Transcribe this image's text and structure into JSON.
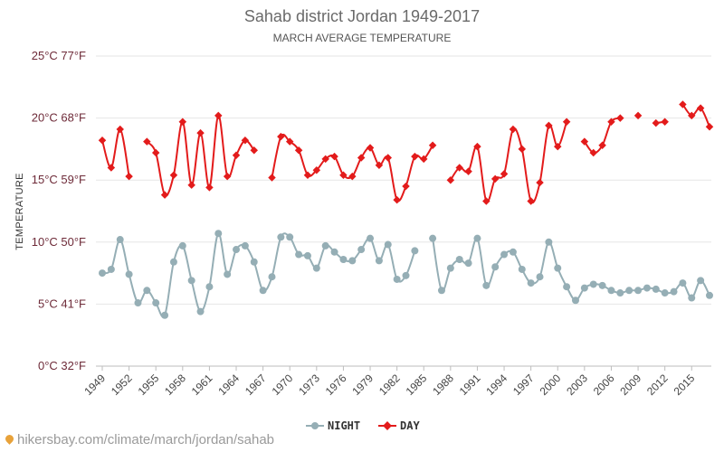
{
  "chart_data": {
    "type": "line",
    "title": "Sahab district Jordan 1949-2017",
    "subtitle": "MARCH AVERAGE TEMPERATURE",
    "ylabel": "TEMPERATURE",
    "ylim": [
      0,
      25
    ],
    "y_ticks": [
      {
        "value": 0,
        "label": "0°C 32°F"
      },
      {
        "value": 5,
        "label": "5°C 41°F"
      },
      {
        "value": 10,
        "label": "10°C 50°F"
      },
      {
        "value": 15,
        "label": "15°C 59°F"
      },
      {
        "value": 20,
        "label": "20°C 68°F"
      },
      {
        "value": 25,
        "label": "25°C 77°F"
      }
    ],
    "x_ticks": [
      "1949",
      "1952",
      "1955",
      "1958",
      "1961",
      "1964",
      "1967",
      "1970",
      "1973",
      "1976",
      "1979",
      "1982",
      "1985",
      "1988",
      "1991",
      "1994",
      "1997",
      "2000",
      "2003",
      "2006",
      "2009",
      "2012",
      "2015"
    ],
    "x": [
      1949,
      1950,
      1951,
      1952,
      1953,
      1954,
      1955,
      1956,
      1957,
      1958,
      1959,
      1960,
      1961,
      1962,
      1963,
      1964,
      1965,
      1966,
      1967,
      1968,
      1969,
      1970,
      1971,
      1972,
      1973,
      1974,
      1975,
      1976,
      1977,
      1978,
      1979,
      1980,
      1981,
      1982,
      1983,
      1984,
      1985,
      1986,
      1987,
      1988,
      1989,
      1990,
      1991,
      1992,
      1993,
      1994,
      1995,
      1996,
      1997,
      1998,
      1999,
      2000,
      2001,
      2002,
      2003,
      2004,
      2005,
      2006,
      2007,
      2008,
      2009,
      2010,
      2011,
      2012,
      2013,
      2014,
      2015,
      2016,
      2017
    ],
    "series": [
      {
        "name": "NIGHT",
        "color": "#95aeb5",
        "values": [
          7.5,
          7.8,
          10.2,
          7.4,
          5.1,
          6.1,
          5.1,
          4.1,
          8.4,
          9.7,
          6.9,
          4.4,
          6.4,
          10.7,
          7.4,
          9.4,
          9.7,
          8.4,
          6.1,
          7.2,
          10.4,
          10.4,
          9.0,
          8.9,
          7.9,
          9.7,
          9.2,
          8.6,
          8.5,
          9.4,
          10.3,
          8.5,
          9.8,
          7.0,
          7.3,
          9.3,
          null,
          10.3,
          6.1,
          7.9,
          8.6,
          8.3,
          10.3,
          6.5,
          8.0,
          9.0,
          9.2,
          7.8,
          6.7,
          7.2,
          10.0,
          7.9,
          6.4,
          5.3,
          6.3,
          6.6,
          6.5,
          6.1,
          5.9,
          6.1,
          6.1,
          6.3,
          6.2,
          5.9,
          6.0,
          6.7,
          5.5,
          6.9,
          5.7
        ]
      },
      {
        "name": "DAY",
        "color": "#e31b1b",
        "values": [
          18.2,
          16.0,
          19.1,
          15.3,
          null,
          18.1,
          17.2,
          13.8,
          15.4,
          19.7,
          14.6,
          18.8,
          14.4,
          20.2,
          15.3,
          17.0,
          18.2,
          17.4,
          null,
          15.2,
          18.5,
          18.1,
          17.4,
          15.4,
          15.8,
          16.7,
          16.9,
          15.4,
          15.3,
          16.8,
          17.6,
          16.2,
          16.8,
          13.4,
          14.5,
          16.9,
          16.7,
          17.8,
          null,
          15.0,
          16.0,
          15.7,
          17.7,
          13.3,
          15.1,
          15.5,
          19.1,
          17.5,
          13.3,
          14.8,
          19.4,
          17.7,
          19.7,
          null,
          18.1,
          17.2,
          17.8,
          19.7,
          20.0,
          null,
          20.2,
          null,
          19.6,
          19.7,
          null,
          21.1,
          20.2,
          20.8,
          19.3
        ]
      }
    ],
    "grid": true,
    "legend": "bottom-center"
  },
  "footer": {
    "url": "hikersbay.com/climate/march/jordan/sahab"
  }
}
